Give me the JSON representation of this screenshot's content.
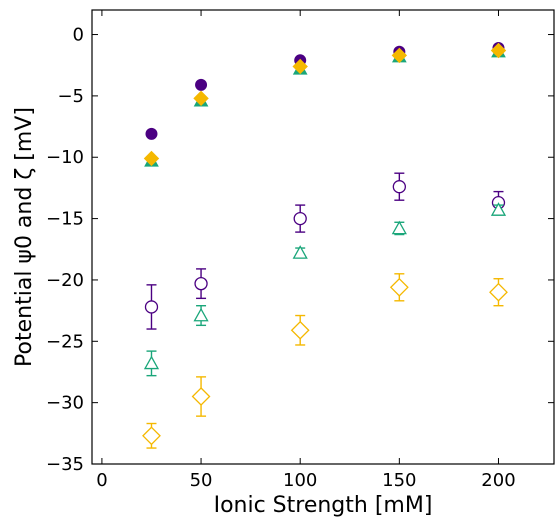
{
  "chart_data": {
    "type": "scatter",
    "xlabel": "Ionic Strength [mM]",
    "ylabel": "Potential ψ0 and ζ [mV]",
    "xlim": [
      -5,
      228
    ],
    "ylim": [
      -35,
      2
    ],
    "xticks": [
      0,
      50,
      100,
      150,
      200
    ],
    "yticks": [
      0,
      -5,
      -10,
      -15,
      -20,
      -25,
      -30,
      -35
    ],
    "xtick_labels": [
      "0",
      "50",
      "100",
      "150",
      "200"
    ],
    "ytick_labels": [
      "0",
      "−5",
      "−10",
      "−15",
      "−20",
      "−25",
      "−30",
      "−35"
    ],
    "grid": false,
    "legend": "none",
    "series": [
      {
        "marker": "circle",
        "filled": true,
        "color": "#4b0082",
        "x": [
          25,
          50,
          100,
          150,
          200
        ],
        "y": [
          -8.1,
          -4.1,
          -2.1,
          -1.4,
          -1.1
        ],
        "yerr": [
          0,
          0,
          0,
          0,
          0
        ]
      },
      {
        "marker": "triangle",
        "filled": true,
        "color": "#1aa67a",
        "x": [
          25,
          50,
          100,
          150,
          200
        ],
        "y": [
          -10.3,
          -5.4,
          -2.8,
          -1.8,
          -1.4
        ],
        "yerr": [
          0,
          0,
          0,
          0,
          0
        ]
      },
      {
        "marker": "diamond",
        "filled": true,
        "color": "#f5b800",
        "x": [
          25,
          50,
          100,
          150,
          200
        ],
        "y": [
          -10.1,
          -5.2,
          -2.6,
          -1.7,
          -1.3
        ],
        "yerr": [
          0,
          0,
          0,
          0,
          0
        ]
      },
      {
        "marker": "circle",
        "filled": false,
        "color": "#4b0082",
        "x": [
          25,
          50,
          100,
          150,
          200
        ],
        "y": [
          -22.2,
          -20.3,
          -15.0,
          -12.4,
          -13.7
        ],
        "yerr": [
          1.8,
          1.2,
          1.1,
          1.1,
          0.9
        ]
      },
      {
        "marker": "triangle",
        "filled": false,
        "color": "#1aa67a",
        "x": [
          25,
          50,
          100,
          150,
          200
        ],
        "y": [
          -26.8,
          -22.9,
          -17.8,
          -15.8,
          -14.3
        ],
        "yerr": [
          1.0,
          0.8,
          0.4,
          0.5,
          0.4
        ]
      },
      {
        "marker": "diamond",
        "filled": false,
        "color": "#f5b800",
        "x": [
          25,
          50,
          100,
          150,
          200
        ],
        "y": [
          -32.7,
          -29.5,
          -24.1,
          -20.6,
          -21.0
        ],
        "yerr": [
          1.0,
          1.6,
          1.2,
          1.1,
          1.1
        ]
      }
    ]
  }
}
